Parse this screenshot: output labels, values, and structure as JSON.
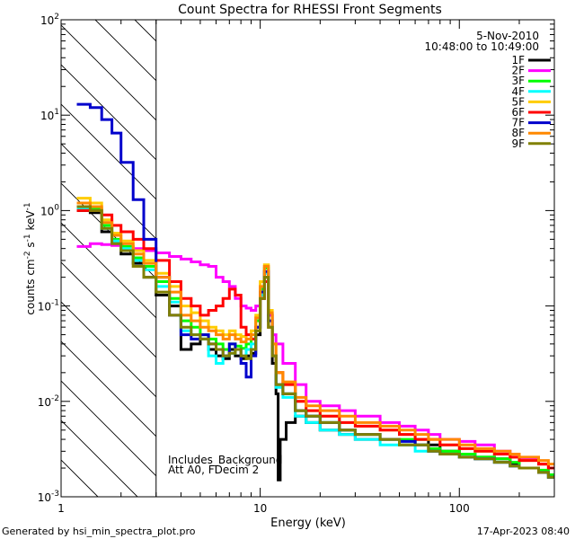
{
  "chart_data": {
    "type": "line",
    "title": "Count Spectra for RHESSI Front Segments",
    "xlabel": "Energy (keV)",
    "ylabel_parts": [
      "counts cm",
      "-2",
      " s",
      "-1",
      " keV",
      "-1"
    ],
    "xscale": "log",
    "yscale": "log",
    "xlim": [
      1,
      300
    ],
    "ylim": [
      0.001,
      100
    ],
    "x_ticks": [
      {
        "value": 1,
        "label": "1"
      },
      {
        "value": 10,
        "label": "10"
      },
      {
        "value": 100,
        "label": "100"
      }
    ],
    "y_ticks": [
      {
        "value": 0.001,
        "base": "10",
        "exp": "-3"
      },
      {
        "value": 0.01,
        "base": "10",
        "exp": "-2"
      },
      {
        "value": 0.1,
        "base": "10",
        "exp": "-1"
      },
      {
        "value": 1,
        "base": "10",
        "exp": "0"
      },
      {
        "value": 10,
        "base": "10",
        "exp": "1"
      },
      {
        "value": 100,
        "base": "10",
        "exp": "2"
      }
    ],
    "shaded_region": {
      "x_start": 1,
      "x_end": 3,
      "pattern": "diagonal-hatch"
    },
    "date": "5-Nov-2010",
    "time_range": "10:48:00 to 10:49:00",
    "annotations": [
      "Includes_Background",
      "Att A0, FDecim 2"
    ],
    "legend_position": "top-right",
    "series": [
      {
        "name": "1F",
        "color": "#000000",
        "x": [
          1.2,
          1.4,
          1.6,
          1.8,
          2.0,
          2.3,
          2.6,
          3.0,
          3.5,
          4.0,
          4.5,
          5.0,
          5.5,
          6.0,
          6.5,
          7.0,
          7.5,
          8.0,
          8.5,
          9.0,
          9.5,
          10.0,
          10.5,
          11.0,
          11.5,
          12.0,
          12.3,
          12.6,
          13.5,
          15,
          17,
          20,
          25,
          30,
          40,
          50,
          60,
          70,
          80,
          100,
          120,
          150,
          180,
          200,
          250,
          280
        ],
        "y": [
          1.0,
          0.95,
          0.6,
          0.45,
          0.35,
          0.28,
          0.2,
          0.13,
          0.1,
          0.035,
          0.04,
          0.045,
          0.035,
          0.03,
          0.028,
          0.035,
          0.03,
          0.028,
          0.03,
          0.032,
          0.05,
          0.12,
          0.2,
          0.08,
          0.025,
          0.012,
          0.0015,
          0.004,
          0.006,
          0.007,
          0.006,
          0.005,
          0.0045,
          0.004,
          0.004,
          0.0035,
          0.004,
          0.0035,
          0.003,
          0.0028,
          0.0026,
          0.0025,
          0.0022,
          0.002,
          0.0018,
          0.0016
        ]
      },
      {
        "name": "2F",
        "color": "#ff00ff",
        "x": [
          1.2,
          1.4,
          1.6,
          1.8,
          2.0,
          2.3,
          2.6,
          3.0,
          3.5,
          4.0,
          4.5,
          5.0,
          5.5,
          6.0,
          6.5,
          7.0,
          7.5,
          8.0,
          8.5,
          9.0,
          9.5,
          10.0,
          10.5,
          11.0,
          11.5,
          12.0,
          13,
          15,
          17,
          20,
          25,
          30,
          40,
          50,
          60,
          70,
          80,
          100,
          120,
          150,
          180,
          200,
          250,
          280
        ],
        "y": [
          0.42,
          0.45,
          0.44,
          0.43,
          0.42,
          0.4,
          0.38,
          0.36,
          0.33,
          0.31,
          0.29,
          0.27,
          0.26,
          0.2,
          0.18,
          0.16,
          0.12,
          0.1,
          0.095,
          0.09,
          0.1,
          0.15,
          0.22,
          0.08,
          0.05,
          0.04,
          0.025,
          0.015,
          0.01,
          0.009,
          0.008,
          0.007,
          0.006,
          0.0055,
          0.005,
          0.0045,
          0.004,
          0.0038,
          0.0035,
          0.003,
          0.0028,
          0.0025,
          0.0022,
          0.002
        ]
      },
      {
        "name": "3F",
        "color": "#00ff00",
        "x": [
          1.2,
          1.4,
          1.6,
          1.8,
          2.0,
          2.3,
          2.6,
          3.0,
          3.5,
          4.0,
          4.5,
          5.0,
          5.5,
          6.0,
          6.5,
          7.0,
          7.5,
          8.0,
          8.5,
          9.0,
          9.5,
          10.0,
          10.5,
          11.0,
          11.5,
          12.0,
          13,
          15,
          17,
          20,
          25,
          30,
          40,
          50,
          60,
          70,
          80,
          100,
          120,
          150,
          180,
          200,
          250,
          280
        ],
        "y": [
          1.1,
          1.05,
          0.7,
          0.5,
          0.42,
          0.32,
          0.26,
          0.18,
          0.12,
          0.07,
          0.06,
          0.05,
          0.045,
          0.04,
          0.035,
          0.04,
          0.038,
          0.036,
          0.04,
          0.045,
          0.07,
          0.15,
          0.25,
          0.06,
          0.03,
          0.015,
          0.012,
          0.008,
          0.007,
          0.006,
          0.005,
          0.0045,
          0.004,
          0.004,
          0.0035,
          0.0032,
          0.003,
          0.0028,
          0.0026,
          0.0025,
          0.0023,
          0.002,
          0.0019,
          0.0017
        ]
      },
      {
        "name": "4F",
        "color": "#00ffff",
        "x": [
          1.2,
          1.4,
          1.6,
          1.8,
          2.0,
          2.3,
          2.6,
          3.0,
          3.5,
          4.0,
          4.5,
          5.0,
          5.5,
          6.0,
          6.5,
          7.0,
          7.5,
          8.0,
          8.5,
          9.0,
          9.5,
          10.0,
          10.5,
          11.0,
          11.5,
          12.0,
          13,
          15,
          17,
          20,
          25,
          30,
          40,
          50,
          60,
          70,
          80,
          100,
          120,
          150,
          180,
          200,
          250,
          280
        ],
        "y": [
          1.05,
          1.0,
          0.65,
          0.48,
          0.4,
          0.3,
          0.24,
          0.16,
          0.11,
          0.055,
          0.05,
          0.045,
          0.03,
          0.025,
          0.03,
          0.032,
          0.035,
          0.03,
          0.035,
          0.04,
          0.06,
          0.13,
          0.22,
          0.07,
          0.03,
          0.014,
          0.011,
          0.007,
          0.006,
          0.005,
          0.0045,
          0.004,
          0.0035,
          0.0035,
          0.003,
          0.003,
          0.0028,
          0.0026,
          0.0025,
          0.0023,
          0.0021,
          0.002,
          0.0018,
          0.0016
        ]
      },
      {
        "name": "5F",
        "color": "#ffcc00",
        "x": [
          1.2,
          1.4,
          1.6,
          1.8,
          2.0,
          2.3,
          2.6,
          3.0,
          3.5,
          4.0,
          4.5,
          5.0,
          5.5,
          6.0,
          6.5,
          7.0,
          7.5,
          8.0,
          8.5,
          9.0,
          9.5,
          10.0,
          10.5,
          11.0,
          11.5,
          12.0,
          13,
          15,
          17,
          20,
          25,
          30,
          40,
          50,
          60,
          70,
          80,
          100,
          120,
          150,
          180,
          200,
          250,
          280
        ],
        "y": [
          1.35,
          1.2,
          0.8,
          0.58,
          0.48,
          0.38,
          0.3,
          0.22,
          0.16,
          0.1,
          0.085,
          0.07,
          0.06,
          0.055,
          0.05,
          0.055,
          0.05,
          0.048,
          0.05,
          0.055,
          0.08,
          0.18,
          0.27,
          0.09,
          0.04,
          0.02,
          0.015,
          0.01,
          0.008,
          0.007,
          0.006,
          0.0055,
          0.005,
          0.0045,
          0.004,
          0.004,
          0.0035,
          0.0032,
          0.003,
          0.0028,
          0.0026,
          0.0024,
          0.0022,
          0.002
        ]
      },
      {
        "name": "6F",
        "color": "#ff0000",
        "x": [
          1.2,
          1.4,
          1.6,
          1.8,
          2.0,
          2.3,
          2.6,
          3.0,
          3.5,
          4.0,
          4.5,
          5.0,
          5.5,
          6.0,
          6.5,
          7.0,
          7.5,
          8.0,
          8.5,
          9.0,
          9.5,
          10.0,
          10.5,
          11.0,
          11.5,
          12.0,
          13,
          15,
          17,
          20,
          25,
          30,
          40,
          50,
          60,
          70,
          80,
          100,
          120,
          150,
          180,
          200,
          250,
          280
        ],
        "y": [
          1.0,
          1.0,
          0.9,
          0.7,
          0.6,
          0.5,
          0.4,
          0.3,
          0.18,
          0.12,
          0.1,
          0.08,
          0.09,
          0.1,
          0.12,
          0.15,
          0.13,
          0.06,
          0.05,
          0.045,
          0.06,
          0.12,
          0.18,
          0.06,
          0.03,
          0.02,
          0.015,
          0.01,
          0.008,
          0.007,
          0.006,
          0.0055,
          0.005,
          0.0045,
          0.004,
          0.004,
          0.0035,
          0.0032,
          0.003,
          0.0028,
          0.0026,
          0.0024,
          0.0022,
          0.002
        ]
      },
      {
        "name": "7F",
        "color": "#0000cc",
        "x": [
          1.2,
          1.4,
          1.6,
          1.8,
          2.0,
          2.3,
          2.6,
          3.0,
          3.5,
          4.0,
          4.5,
          5.0,
          5.5,
          6.0,
          6.5,
          7.0,
          7.5,
          8.0,
          8.5,
          9.0,
          9.5,
          10.0,
          10.5,
          11.0,
          11.5,
          12.0,
          13,
          15,
          17,
          20,
          25,
          30,
          40,
          50,
          60,
          70,
          80,
          100,
          120,
          150,
          180,
          200,
          250,
          280
        ],
        "y": [
          13,
          12,
          9,
          6.5,
          3.2,
          1.3,
          0.5,
          0.2,
          0.08,
          0.05,
          0.045,
          0.05,
          0.04,
          0.035,
          0.03,
          0.04,
          0.035,
          0.025,
          0.018,
          0.03,
          0.06,
          0.14,
          0.23,
          0.07,
          0.03,
          0.015,
          0.012,
          0.008,
          0.007,
          0.006,
          0.005,
          0.0045,
          0.004,
          0.0038,
          0.0035,
          0.003,
          0.0028,
          0.0026,
          0.0025,
          0.0023,
          0.0021,
          0.002,
          0.0018,
          0.0016
        ]
      },
      {
        "name": "8F",
        "color": "#ff8800",
        "x": [
          1.2,
          1.4,
          1.6,
          1.8,
          2.0,
          2.3,
          2.6,
          3.0,
          3.5,
          4.0,
          4.5,
          5.0,
          5.5,
          6.0,
          6.5,
          7.0,
          7.5,
          8.0,
          8.5,
          9.0,
          9.5,
          10.0,
          10.5,
          11.0,
          11.5,
          12.0,
          13,
          15,
          17,
          20,
          25,
          30,
          40,
          50,
          60,
          70,
          80,
          100,
          120,
          150,
          180,
          200,
          250,
          280
        ],
        "y": [
          1.2,
          1.1,
          0.75,
          0.55,
          0.45,
          0.35,
          0.28,
          0.2,
          0.14,
          0.08,
          0.07,
          0.06,
          0.055,
          0.05,
          0.045,
          0.05,
          0.045,
          0.042,
          0.045,
          0.05,
          0.075,
          0.16,
          0.26,
          0.085,
          0.04,
          0.02,
          0.016,
          0.011,
          0.009,
          0.008,
          0.007,
          0.006,
          0.0055,
          0.005,
          0.0045,
          0.004,
          0.004,
          0.0035,
          0.0032,
          0.003,
          0.0028,
          0.0026,
          0.0024,
          0.0022
        ]
      },
      {
        "name": "9F",
        "color": "#808000",
        "x": [
          1.2,
          1.4,
          1.6,
          1.8,
          2.0,
          2.3,
          2.6,
          3.0,
          3.5,
          4.0,
          4.5,
          5.0,
          5.5,
          6.0,
          6.5,
          7.0,
          7.5,
          8.0,
          8.5,
          9.0,
          9.5,
          10.0,
          10.5,
          11.0,
          11.5,
          12.0,
          13,
          15,
          17,
          20,
          25,
          30,
          40,
          50,
          60,
          70,
          80,
          100,
          120,
          150,
          180,
          200,
          250,
          280
        ],
        "y": [
          1.1,
          1.0,
          0.65,
          0.45,
          0.38,
          0.26,
          0.2,
          0.14,
          0.08,
          0.06,
          0.05,
          0.045,
          0.04,
          0.035,
          0.03,
          0.032,
          0.035,
          0.03,
          0.028,
          0.035,
          0.055,
          0.12,
          0.2,
          0.06,
          0.03,
          0.015,
          0.012,
          0.008,
          0.007,
          0.006,
          0.005,
          0.0045,
          0.004,
          0.0035,
          0.0035,
          0.003,
          0.0028,
          0.0026,
          0.0025,
          0.0023,
          0.0021,
          0.002,
          0.0018,
          0.0016
        ]
      }
    ]
  },
  "footer": {
    "generated_by": "Generated by hsi_min_spectra_plot.pro",
    "timestamp": "17-Apr-2023 08:40"
  }
}
